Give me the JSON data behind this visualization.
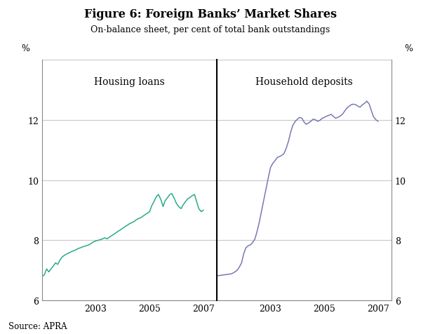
{
  "title": "Figure 6: Foreign Banks’ Market Shares",
  "subtitle": "On-balance sheet, per cent of total bank outstandings",
  "left_label": "Housing loans",
  "right_label": "Household deposits",
  "ylabel_left": "%",
  "ylabel_right": "%",
  "source": "Source: APRA",
  "ylim": [
    6,
    14
  ],
  "yticks": [
    6,
    8,
    10,
    12,
    14
  ],
  "background_color": "#ffffff",
  "grid_color": "#c8c8c8",
  "housing_color": "#2aaa8a",
  "deposits_color": "#7878b8",
  "divider_color": "#000000",
  "housing_x": [
    2001.0,
    2001.08,
    2001.17,
    2001.25,
    2001.33,
    2001.42,
    2001.5,
    2001.58,
    2001.67,
    2001.75,
    2001.83,
    2001.92,
    2002.0,
    2002.08,
    2002.17,
    2002.25,
    2002.33,
    2002.42,
    2002.5,
    2002.58,
    2002.67,
    2002.75,
    2002.83,
    2002.92,
    2003.0,
    2003.08,
    2003.17,
    2003.25,
    2003.33,
    2003.42,
    2003.5,
    2003.58,
    2003.67,
    2003.75,
    2003.83,
    2003.92,
    2004.0,
    2004.08,
    2004.17,
    2004.25,
    2004.33,
    2004.42,
    2004.5,
    2004.58,
    2004.67,
    2004.75,
    2004.83,
    2004.92,
    2005.0,
    2005.08,
    2005.17,
    2005.25,
    2005.33,
    2005.42,
    2005.5,
    2005.58,
    2005.67,
    2005.75,
    2005.83,
    2005.92,
    2006.0,
    2006.08,
    2006.17,
    2006.25,
    2006.33,
    2006.42,
    2006.5,
    2006.58,
    2006.67,
    2006.75,
    2006.83,
    2006.92,
    2007.0
  ],
  "housing_y": [
    6.8,
    6.85,
    7.05,
    6.95,
    7.05,
    7.15,
    7.25,
    7.2,
    7.35,
    7.45,
    7.5,
    7.55,
    7.58,
    7.62,
    7.65,
    7.68,
    7.72,
    7.75,
    7.78,
    7.8,
    7.83,
    7.85,
    7.9,
    7.95,
    7.98,
    8.0,
    8.02,
    8.05,
    8.08,
    8.05,
    8.1,
    8.15,
    8.2,
    8.25,
    8.3,
    8.35,
    8.4,
    8.45,
    8.5,
    8.55,
    8.58,
    8.62,
    8.68,
    8.72,
    8.75,
    8.8,
    8.85,
    8.9,
    8.95,
    9.15,
    9.3,
    9.45,
    9.52,
    9.35,
    9.12,
    9.32,
    9.42,
    9.52,
    9.55,
    9.38,
    9.22,
    9.12,
    9.05,
    9.18,
    9.28,
    9.38,
    9.42,
    9.48,
    9.52,
    9.28,
    9.05,
    8.95,
    9.0
  ],
  "deposits_x": [
    2001.0,
    2001.08,
    2001.17,
    2001.25,
    2001.33,
    2001.42,
    2001.5,
    2001.58,
    2001.67,
    2001.75,
    2001.83,
    2001.92,
    2002.0,
    2002.08,
    2002.17,
    2002.25,
    2002.33,
    2002.42,
    2002.5,
    2002.58,
    2002.67,
    2002.75,
    2002.83,
    2002.92,
    2003.0,
    2003.08,
    2003.17,
    2003.25,
    2003.33,
    2003.42,
    2003.5,
    2003.58,
    2003.67,
    2003.75,
    2003.83,
    2003.92,
    2004.0,
    2004.08,
    2004.17,
    2004.25,
    2004.33,
    2004.42,
    2004.5,
    2004.58,
    2004.67,
    2004.75,
    2004.83,
    2004.92,
    2005.0,
    2005.08,
    2005.17,
    2005.25,
    2005.33,
    2005.42,
    2005.5,
    2005.58,
    2005.67,
    2005.75,
    2005.83,
    2005.92,
    2006.0,
    2006.08,
    2006.17,
    2006.25,
    2006.33,
    2006.42,
    2006.5,
    2006.58,
    2006.67,
    2006.75,
    2006.83,
    2006.92,
    2007.0
  ],
  "deposits_y": [
    6.82,
    6.83,
    6.84,
    6.85,
    6.86,
    6.87,
    6.88,
    6.9,
    6.95,
    7.0,
    7.1,
    7.25,
    7.55,
    7.75,
    7.82,
    7.85,
    7.92,
    8.05,
    8.3,
    8.6,
    9.0,
    9.35,
    9.7,
    10.1,
    10.42,
    10.55,
    10.65,
    10.75,
    10.78,
    10.82,
    10.88,
    11.05,
    11.3,
    11.6,
    11.82,
    11.95,
    12.02,
    12.08,
    12.05,
    11.92,
    11.85,
    11.9,
    11.95,
    12.02,
    12.0,
    11.95,
    11.98,
    12.05,
    12.08,
    12.12,
    12.15,
    12.18,
    12.12,
    12.05,
    12.08,
    12.12,
    12.18,
    12.28,
    12.38,
    12.45,
    12.5,
    12.52,
    12.5,
    12.45,
    12.42,
    12.5,
    12.55,
    12.62,
    12.52,
    12.3,
    12.1,
    12.0,
    11.95
  ],
  "left_xtick_positions": [
    2003,
    2005,
    2007
  ],
  "left_xtick_labels": [
    "2003",
    "2005",
    "2007"
  ],
  "right_xtick_positions": [
    2003,
    2005,
    2007
  ],
  "right_xtick_labels": [
    "2003",
    "2005",
    "2007"
  ],
  "xlim": [
    2001,
    2007.5
  ]
}
